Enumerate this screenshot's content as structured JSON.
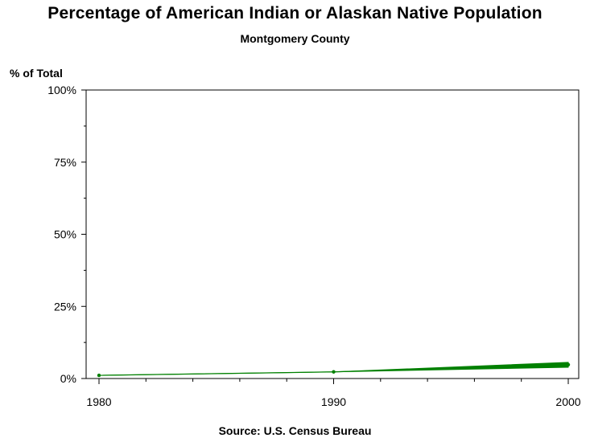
{
  "chart_data": {
    "type": "area",
    "title": "Percentage of American Indian or Alaskan Native Population",
    "subtitle": "Montgomery County",
    "ylabel": "% of Total",
    "footnote": "Source: U.S. Census Bureau",
    "x": [
      1980,
      1990,
      2000
    ],
    "y_tick_labels": [
      "0%",
      "25%",
      "50%",
      "75%",
      "100%"
    ],
    "x_tick_labels": [
      "1980",
      "1990",
      "2000"
    ],
    "xlim": [
      1980,
      2000
    ],
    "ylim": [
      0,
      100
    ],
    "series": [
      {
        "values": [
          1.1,
          2.3,
          4.8
        ],
        "upper": [
          1.1,
          2.3,
          5.6
        ],
        "lower": [
          1.1,
          2.3,
          3.9
        ]
      }
    ],
    "grid": false,
    "color": "#008000"
  }
}
